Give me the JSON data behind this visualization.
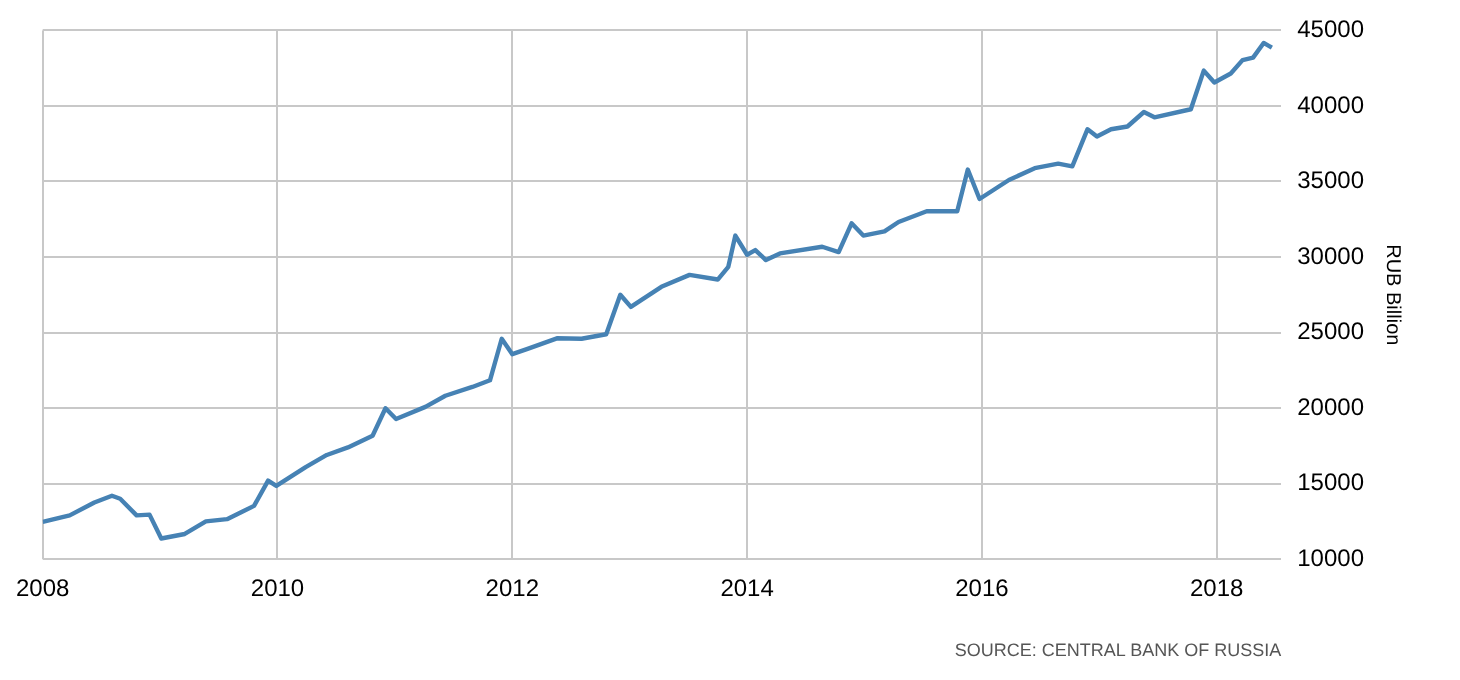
{
  "chart_data": {
    "type": "line",
    "y2label": "RUB Billion",
    "annotations": [
      "SOURCE: CENTRAL BANK OF RUSSIA"
    ],
    "x": [
      2008.0,
      2008.23,
      2008.44,
      2008.59,
      2008.66,
      2008.8,
      2008.91,
      2009.01,
      2009.21,
      2009.39,
      2009.57,
      2009.8,
      2009.92,
      2009.99,
      2010.24,
      2010.42,
      2010.6,
      2010.81,
      2010.92,
      2011.01,
      2011.26,
      2011.43,
      2011.66,
      2011.81,
      2011.91,
      2012.0,
      2012.13,
      2012.38,
      2012.59,
      2012.8,
      2012.92,
      2013.01,
      2013.27,
      2013.51,
      2013.75,
      2013.84,
      2013.9,
      2014.0,
      2014.07,
      2014.16,
      2014.28,
      2014.64,
      2014.78,
      2014.89,
      2014.99,
      2015.17,
      2015.29,
      2015.53,
      2015.79,
      2015.88,
      2015.98,
      2016.23,
      2016.45,
      2016.65,
      2016.77,
      2016.9,
      2016.98,
      2017.1,
      2017.24,
      2017.38,
      2017.47,
      2017.78,
      2017.89,
      2017.98,
      2018.12,
      2018.22,
      2018.31,
      2018.4,
      2018.47
    ],
    "series": [
      {
        "color": "#4682b4",
        "axis": "y2",
        "values": [
          12470,
          12900,
          13750,
          14200,
          14000,
          12900,
          12950,
          11370,
          11670,
          12500,
          12650,
          13530,
          15200,
          14850,
          16100,
          16900,
          17400,
          18170,
          19990,
          19280,
          20080,
          20820,
          21400,
          21840,
          24590,
          23570,
          23920,
          24620,
          24590,
          24890,
          27500,
          26700,
          28030,
          28820,
          28510,
          29350,
          31420,
          30150,
          30460,
          29800,
          30240,
          30680,
          30330,
          32230,
          31420,
          31700,
          32320,
          33030,
          33030,
          35790,
          33840,
          35100,
          35880,
          36180,
          36000,
          38460,
          37980,
          38460,
          38640,
          39600,
          39250,
          39780,
          42340,
          41550,
          42150,
          43030,
          43200,
          44170,
          43860
        ]
      }
    ],
    "xlim": [
      2008,
      2018.55
    ],
    "xticks": [
      2008,
      2010,
      2012,
      2014,
      2016,
      2018
    ],
    "y2lim": [
      10000,
      45000
    ],
    "y2ticks": [
      10000,
      15000,
      20000,
      25000,
      30000,
      35000,
      40000,
      45000
    ],
    "grid": true,
    "legend": false,
    "marker": "none",
    "line_style": "solid"
  }
}
